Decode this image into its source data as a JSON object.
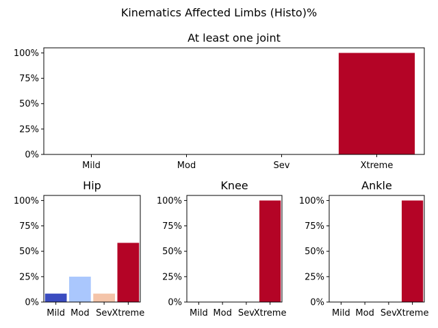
{
  "figure": {
    "suptitle": "Kinematics Affected Limbs (Histo)%"
  },
  "chart_data": [
    {
      "type": "bar",
      "title": "At least one joint",
      "categories": [
        "Mild",
        "Mod",
        "Sev",
        "Xtreme"
      ],
      "values": [
        0,
        0,
        0,
        100
      ],
      "colors": [
        "#3b4cc0",
        "#aac7fd",
        "#f4c4a9",
        "#b40426"
      ],
      "ylim": [
        0,
        105
      ],
      "yticks": [
        "0%",
        "25%",
        "50%",
        "75%",
        "100%"
      ],
      "ytick_values": [
        0,
        25,
        50,
        75,
        100
      ],
      "grid": false,
      "xlabel": "",
      "ylabel": ""
    },
    {
      "type": "bar",
      "title": "Hip",
      "categories": [
        "Mild",
        "Mod",
        "Sev",
        "Xtreme"
      ],
      "values": [
        8.3,
        25,
        8.3,
        58.3
      ],
      "colors": [
        "#3b4cc0",
        "#aac7fd",
        "#f4c4a9",
        "#b40426"
      ],
      "ylim": [
        0,
        105
      ],
      "yticks": [
        "0%",
        "25%",
        "50%",
        "75%",
        "100%"
      ],
      "ytick_values": [
        0,
        25,
        50,
        75,
        100
      ],
      "grid": false,
      "xlabel": "",
      "ylabel": ""
    },
    {
      "type": "bar",
      "title": "Knee",
      "categories": [
        "Mild",
        "Mod",
        "Sev",
        "Xtreme"
      ],
      "values": [
        0,
        0,
        0,
        100
      ],
      "colors": [
        "#3b4cc0",
        "#aac7fd",
        "#f4c4a9",
        "#b40426"
      ],
      "ylim": [
        0,
        105
      ],
      "yticks": [
        "0%",
        "25%",
        "50%",
        "75%",
        "100%"
      ],
      "ytick_values": [
        0,
        25,
        50,
        75,
        100
      ],
      "grid": false,
      "xlabel": "",
      "ylabel": ""
    },
    {
      "type": "bar",
      "title": "Ankle",
      "categories": [
        "Mild",
        "Mod",
        "Sev",
        "Xtreme"
      ],
      "values": [
        0,
        0,
        0,
        100
      ],
      "colors": [
        "#3b4cc0",
        "#aac7fd",
        "#f4c4a9",
        "#b40426"
      ],
      "ylim": [
        0,
        105
      ],
      "yticks": [
        "0%",
        "25%",
        "50%",
        "75%",
        "100%"
      ],
      "ytick_values": [
        0,
        25,
        50,
        75,
        100
      ],
      "grid": false,
      "xlabel": "",
      "ylabel": ""
    }
  ]
}
